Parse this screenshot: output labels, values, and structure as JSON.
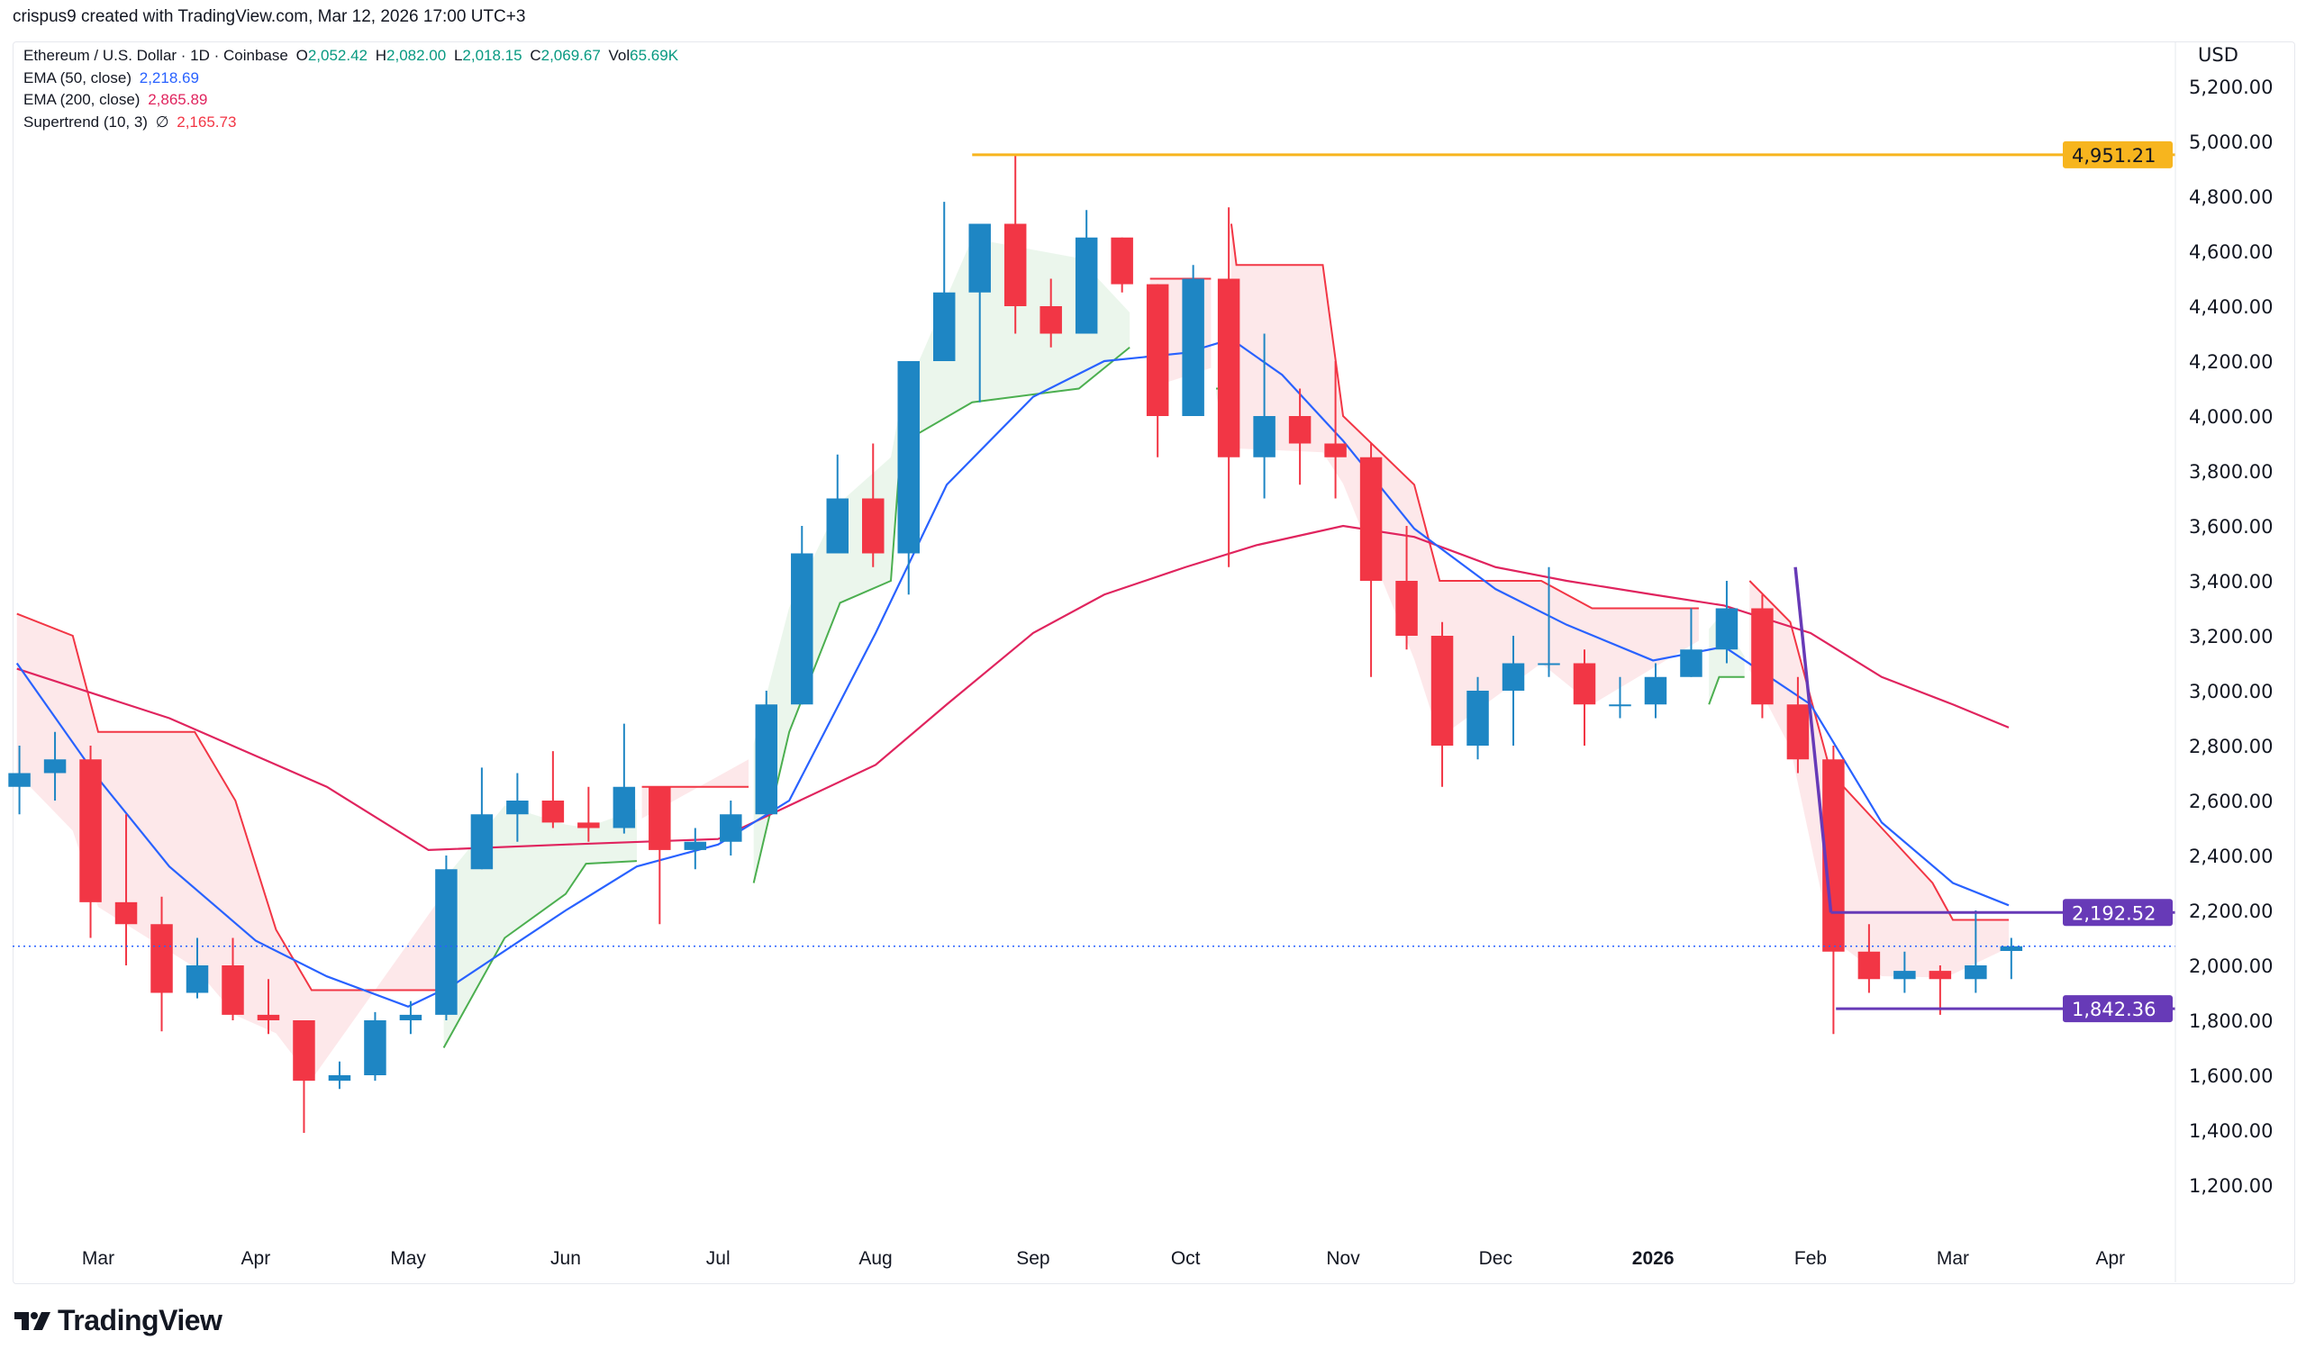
{
  "credit": "crispus9 created with TradingView.com, Mar 12, 2026 17:00 UTC+3",
  "legend": {
    "symbol": "Ethereum / U.S. Dollar · 1D · Coinbase",
    "o_label": "O",
    "o": "2,052.42",
    "h_label": "H",
    "h": "2,082.00",
    "l_label": "L",
    "l": "2,018.15",
    "c_label": "C",
    "c": "2,069.67",
    "vol_label": "Vol",
    "vol": "65.69",
    "vol_unit": "K",
    "ema50_label": "EMA (50, close)",
    "ema50": "2,218.69",
    "ema200_label": "EMA (200, close)",
    "ema200": "2,865.89",
    "st_label": "Supertrend (10, 3)",
    "st_icon": "∅",
    "st": "2,165.73"
  },
  "brand": {
    "name": "TradingView",
    "logo_icon": "tradingview-logo-icon"
  },
  "chart_data": {
    "type": "candlestick",
    "currency": "USD",
    "ylim": [
      1000,
      5300
    ],
    "grid": false,
    "price_ticks": [
      "5,200.00",
      "5,000.00",
      "4,800.00",
      "4,600.00",
      "4,400.00",
      "4,200.00",
      "4,000.00",
      "3,800.00",
      "3,600.00",
      "3,400.00",
      "3,200.00",
      "3,000.00",
      "2,800.00",
      "2,600.00",
      "2,400.00",
      "2,200.00",
      "2,000.00",
      "1,800.00",
      "1,600.00",
      "1,400.00",
      "1,200.00"
    ],
    "time_ticks": [
      {
        "label": "Mar",
        "date": "2025-03-01"
      },
      {
        "label": "Apr",
        "date": "2025-04-01"
      },
      {
        "label": "May",
        "date": "2025-05-01"
      },
      {
        "label": "Jun",
        "date": "2025-06-01"
      },
      {
        "label": "Jul",
        "date": "2025-07-01"
      },
      {
        "label": "Aug",
        "date": "2025-08-01"
      },
      {
        "label": "Sep",
        "date": "2025-09-01"
      },
      {
        "label": "Oct",
        "date": "2025-10-01"
      },
      {
        "label": "Nov",
        "date": "2025-11-01"
      },
      {
        "label": "Dec",
        "date": "2025-12-01"
      },
      {
        "label": "2026",
        "date": "2026-01-01",
        "bold": true
      },
      {
        "label": "Feb",
        "date": "2026-02-01"
      },
      {
        "label": "Mar",
        "date": "2026-03-01"
      },
      {
        "label": "Apr",
        "date": "2026-04-01"
      }
    ],
    "colors": {
      "up": "#1e86c4",
      "down": "#f23645",
      "ema50": "#2962ff",
      "ema200": "#e0245e",
      "st_up": "#4caf50",
      "st_down": "#f23645",
      "fill_up": "#e8f5e9",
      "fill_down": "#fde4e6",
      "hline_gold": "#f7b51e",
      "hline_purple": "#673ab7",
      "last_price": "#2962ff"
    },
    "candles_weekly": [
      [
        "2025-02-10",
        2650,
        2800,
        2550,
        2700
      ],
      [
        "2025-02-17",
        2700,
        2850,
        2600,
        2750
      ],
      [
        "2025-02-24",
        2750,
        2800,
        2100,
        2230
      ],
      [
        "2025-03-03",
        2230,
        2550,
        2000,
        2150
      ],
      [
        "2025-03-10",
        2150,
        2250,
        1760,
        1900
      ],
      [
        "2025-03-17",
        1900,
        2100,
        1880,
        2000
      ],
      [
        "2025-03-24",
        2000,
        2100,
        1800,
        1820
      ],
      [
        "2025-03-31",
        1820,
        1950,
        1750,
        1800
      ],
      [
        "2025-04-07",
        1800,
        1800,
        1390,
        1580
      ],
      [
        "2025-04-14",
        1580,
        1650,
        1550,
        1600
      ],
      [
        "2025-04-21",
        1600,
        1830,
        1580,
        1800
      ],
      [
        "2025-04-28",
        1800,
        1870,
        1750,
        1820
      ],
      [
        "2025-05-05",
        1820,
        2400,
        1800,
        2350
      ],
      [
        "2025-05-12",
        2350,
        2720,
        2350,
        2550
      ],
      [
        "2025-05-19",
        2550,
        2700,
        2450,
        2600
      ],
      [
        "2025-05-26",
        2600,
        2780,
        2500,
        2520
      ],
      [
        "2025-06-02",
        2520,
        2650,
        2450,
        2500
      ],
      [
        "2025-06-09",
        2500,
        2880,
        2480,
        2650
      ],
      [
        "2025-06-16",
        2650,
        2650,
        2150,
        2420
      ],
      [
        "2025-06-23",
        2420,
        2500,
        2350,
        2450
      ],
      [
        "2025-06-30",
        2450,
        2600,
        2400,
        2550
      ],
      [
        "2025-07-07",
        2550,
        3000,
        2550,
        2950
      ],
      [
        "2025-07-14",
        2950,
        3600,
        2950,
        3500
      ],
      [
        "2025-07-21",
        3500,
        3860,
        3500,
        3700
      ],
      [
        "2025-07-28",
        3700,
        3900,
        3450,
        3500
      ],
      [
        "2025-08-04",
        3500,
        4200,
        3350,
        4200
      ],
      [
        "2025-08-11",
        4200,
        4780,
        4200,
        4450
      ],
      [
        "2025-08-18",
        4450,
        4700,
        4050,
        4700
      ],
      [
        "2025-08-25",
        4700,
        4951.21,
        4300,
        4400
      ],
      [
        "2025-09-01",
        4400,
        4500,
        4250,
        4300
      ],
      [
        "2025-09-08",
        4300,
        4750,
        4300,
        4650
      ],
      [
        "2025-09-15",
        4650,
        4650,
        4450,
        4480
      ],
      [
        "2025-09-22",
        4480,
        4480,
        3850,
        4000
      ],
      [
        "2025-09-29",
        4000,
        4550,
        4000,
        4500
      ],
      [
        "2025-10-06",
        4500,
        4760,
        3450,
        3850
      ],
      [
        "2025-10-13",
        3850,
        4300,
        3700,
        4000
      ],
      [
        "2025-10-20",
        4000,
        4100,
        3750,
        3900
      ],
      [
        "2025-10-27",
        3900,
        4200,
        3700,
        3850
      ],
      [
        "2025-11-03",
        3850,
        3900,
        3050,
        3400
      ],
      [
        "2025-11-10",
        3400,
        3600,
        3150,
        3200
      ],
      [
        "2025-11-17",
        3200,
        3250,
        2650,
        2800
      ],
      [
        "2025-11-24",
        2800,
        3050,
        2750,
        3000
      ],
      [
        "2025-12-01",
        3000,
        3200,
        2800,
        3100
      ],
      [
        "2025-12-08",
        3100,
        3450,
        3050,
        3100
      ],
      [
        "2025-12-15",
        3100,
        3150,
        2800,
        2950
      ],
      [
        "2025-12-22",
        2950,
        3050,
        2900,
        2950
      ],
      [
        "2025-12-29",
        2950,
        3100,
        2900,
        3050
      ],
      [
        "2026-01-05",
        3050,
        3300,
        3050,
        3150
      ],
      [
        "2026-01-12",
        3150,
        3400,
        3100,
        3300
      ],
      [
        "2026-01-19",
        3300,
        3350,
        2900,
        2950
      ],
      [
        "2026-01-26",
        2950,
        3050,
        2700,
        2750
      ],
      [
        "2026-02-02",
        2750,
        2800,
        1750,
        2050
      ],
      [
        "2026-02-09",
        2050,
        2150,
        1900,
        1950
      ],
      [
        "2026-02-16",
        1950,
        2050,
        1900,
        1980
      ],
      [
        "2026-02-23",
        1980,
        2000,
        1820,
        1950
      ],
      [
        "2026-03-02",
        1950,
        2200,
        1900,
        2000
      ],
      [
        "2026-03-09",
        2052.42,
        2100,
        1950,
        2069.67
      ]
    ],
    "ema50": [
      [
        "2025-02-13",
        3100
      ],
      [
        "2025-03-01",
        2680
      ],
      [
        "2025-03-15",
        2360
      ],
      [
        "2025-04-01",
        2090
      ],
      [
        "2025-04-15",
        1960
      ],
      [
        "2025-05-01",
        1850
      ],
      [
        "2025-05-10",
        1930
      ],
      [
        "2025-06-01",
        2200
      ],
      [
        "2025-06-15",
        2360
      ],
      [
        "2025-07-01",
        2440
      ],
      [
        "2025-07-15",
        2600
      ],
      [
        "2025-08-01",
        3210
      ],
      [
        "2025-08-15",
        3750
      ],
      [
        "2025-09-01",
        4070
      ],
      [
        "2025-09-15",
        4200
      ],
      [
        "2025-10-01",
        4230
      ],
      [
        "2025-10-10",
        4280
      ],
      [
        "2025-10-20",
        4150
      ],
      [
        "2025-11-01",
        3910
      ],
      [
        "2025-11-15",
        3590
      ],
      [
        "2025-12-01",
        3370
      ],
      [
        "2025-12-15",
        3240
      ],
      [
        "2026-01-01",
        3110
      ],
      [
        "2026-01-15",
        3160
      ],
      [
        "2026-02-01",
        2950
      ],
      [
        "2026-02-15",
        2520
      ],
      [
        "2026-03-01",
        2300
      ],
      [
        "2026-03-12",
        2218.69
      ]
    ],
    "ema200": [
      [
        "2025-02-13",
        3080
      ],
      [
        "2025-03-15",
        2900
      ],
      [
        "2025-04-15",
        2650
      ],
      [
        "2025-05-05",
        2420
      ],
      [
        "2025-06-01",
        2440
      ],
      [
        "2025-07-01",
        2460
      ],
      [
        "2025-08-01",
        2730
      ],
      [
        "2025-08-15",
        2950
      ],
      [
        "2025-09-01",
        3210
      ],
      [
        "2025-09-15",
        3350
      ],
      [
        "2025-10-01",
        3450
      ],
      [
        "2025-10-15",
        3530
      ],
      [
        "2025-11-01",
        3600
      ],
      [
        "2025-11-15",
        3560
      ],
      [
        "2025-12-01",
        3450
      ],
      [
        "2025-12-15",
        3400
      ],
      [
        "2026-01-01",
        3350
      ],
      [
        "2026-01-15",
        3310
      ],
      [
        "2026-02-01",
        3210
      ],
      [
        "2026-02-15",
        3050
      ],
      [
        "2026-03-01",
        2950
      ],
      [
        "2026-03-12",
        2865.89
      ]
    ],
    "supertrend": [
      {
        "trend": "down",
        "points": [
          [
            "2025-02-13",
            3280
          ],
          [
            "2025-02-24",
            3200
          ],
          [
            "2025-03-01",
            2850
          ],
          [
            "2025-03-20",
            2850
          ],
          [
            "2025-03-28",
            2600
          ],
          [
            "2025-04-05",
            2130
          ],
          [
            "2025-04-12",
            1910
          ],
          [
            "2025-05-07",
            1910
          ]
        ]
      },
      {
        "trend": "up",
        "points": [
          [
            "2025-05-08",
            1700
          ],
          [
            "2025-05-20",
            2100
          ],
          [
            "2025-06-01",
            2260
          ],
          [
            "2025-06-05",
            2370
          ],
          [
            "2025-06-15",
            2380
          ]
        ]
      },
      {
        "trend": "down",
        "points": [
          [
            "2025-06-16",
            2650
          ],
          [
            "2025-07-07",
            2650
          ]
        ]
      },
      {
        "trend": "up",
        "points": [
          [
            "2025-07-08",
            2300
          ],
          [
            "2025-07-15",
            2850
          ],
          [
            "2025-07-25",
            3320
          ],
          [
            "2025-08-04",
            3400
          ],
          [
            "2025-08-06",
            3900
          ],
          [
            "2025-08-20",
            4050
          ],
          [
            "2025-09-10",
            4100
          ],
          [
            "2025-09-20",
            4250
          ]
        ]
      },
      {
        "trend": "down",
        "points": [
          [
            "2025-09-24",
            4500
          ],
          [
            "2025-10-06",
            4500
          ]
        ]
      },
      {
        "trend": "up",
        "points": [
          [
            "2025-10-07",
            4100
          ],
          [
            "2025-10-09",
            4100
          ]
        ]
      },
      {
        "trend": "down",
        "points": [
          [
            "2025-10-10",
            4700
          ],
          [
            "2025-10-11",
            4550
          ],
          [
            "2025-10-28",
            4550
          ],
          [
            "2025-11-01",
            4000
          ],
          [
            "2025-11-15",
            3750
          ],
          [
            "2025-11-20",
            3400
          ],
          [
            "2025-12-10",
            3400
          ],
          [
            "2025-12-20",
            3300
          ],
          [
            "2026-01-10",
            3300
          ]
        ]
      },
      {
        "trend": "up",
        "points": [
          [
            "2026-01-12",
            2950
          ],
          [
            "2026-01-14",
            3050
          ],
          [
            "2026-01-19",
            3050
          ]
        ]
      },
      {
        "trend": "down",
        "points": [
          [
            "2026-01-20",
            3400
          ],
          [
            "2026-01-28",
            3250
          ],
          [
            "2026-02-05",
            2700
          ],
          [
            "2026-02-15",
            2500
          ],
          [
            "2026-02-25",
            2300
          ],
          [
            "2026-03-01",
            2165.73
          ],
          [
            "2026-03-12",
            2165.73
          ]
        ]
      }
    ],
    "horizontal_levels": [
      {
        "value": 4951.21,
        "label": "4,951.21",
        "from": "2025-08-20",
        "color": "gold"
      },
      {
        "value": 2192.52,
        "label": "2,192.52",
        "from": "2026-02-05",
        "color": "purple"
      },
      {
        "value": 1842.36,
        "label": "1,842.36",
        "from": "2026-02-06",
        "color": "purple"
      }
    ],
    "trendline": [
      [
        "2026-01-29",
        3450
      ],
      [
        "2026-02-05",
        2192.52
      ]
    ],
    "last_price": 2069.67
  }
}
